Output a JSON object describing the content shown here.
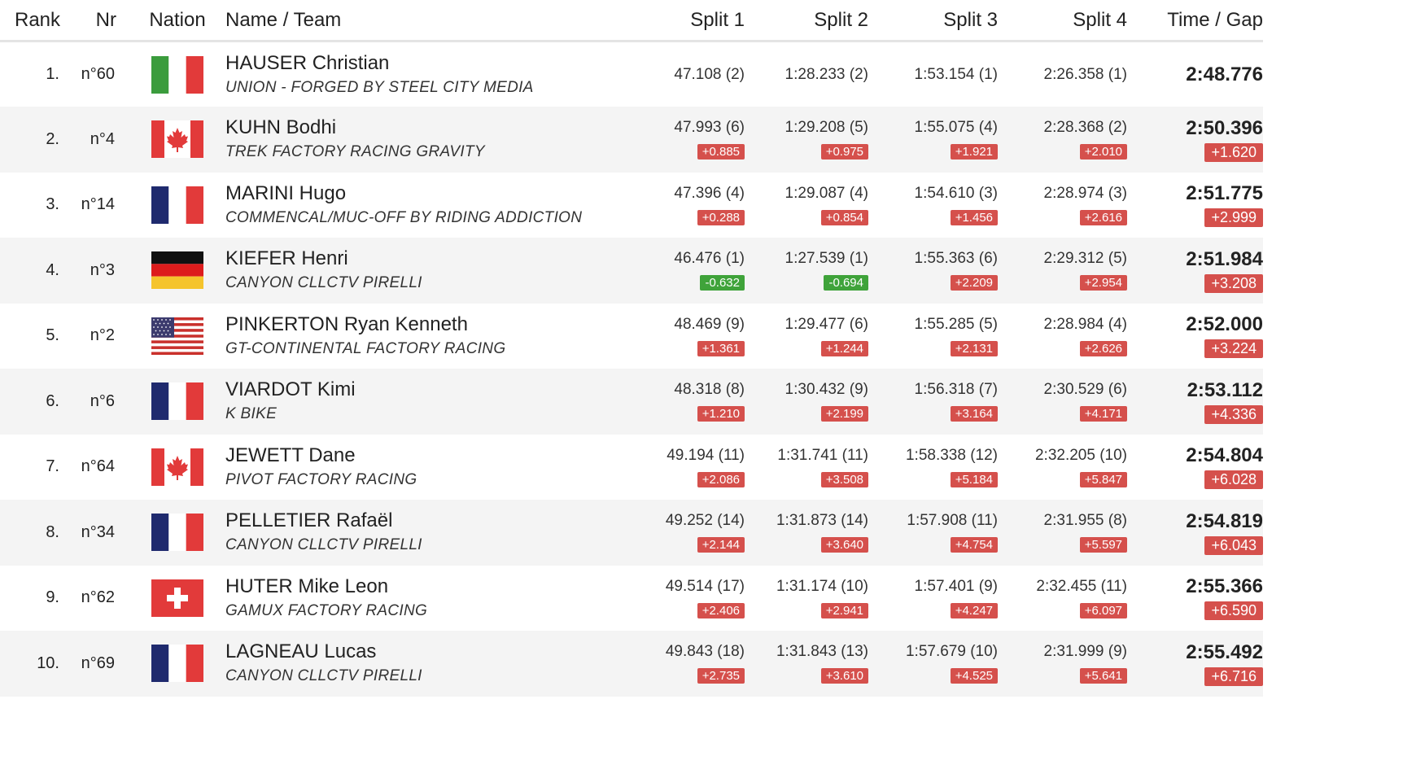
{
  "headers": {
    "rank": "Rank",
    "nr": "Nr",
    "nation": "Nation",
    "name_team": "Name / Team",
    "split1": "Split 1",
    "split2": "Split 2",
    "split3": "Split 3",
    "split4": "Split 4",
    "time_gap": "Time / Gap"
  },
  "colors": {
    "positive_badge": "#d5504c",
    "negative_badge": "#3fa33a",
    "row_alt": "#f4f4f4"
  },
  "rows": [
    {
      "rank": "1.",
      "nr": "n°60",
      "nation_flag": "italy-flag-icon",
      "name": "HAUSER Christian",
      "team": "UNION - FORGED BY STEEL CITY MEDIA",
      "splits": [
        {
          "value": "47.108 (2)",
          "diff": ""
        },
        {
          "value": "1:28.233 (2)",
          "diff": ""
        },
        {
          "value": "1:53.154 (1)",
          "diff": ""
        },
        {
          "value": "2:26.358 (1)",
          "diff": ""
        }
      ],
      "time": "2:48.776",
      "gap": ""
    },
    {
      "rank": "2.",
      "nr": "n°4",
      "nation_flag": "canada-flag-icon",
      "name": "KUHN Bodhi",
      "team": "TREK FACTORY RACING GRAVITY",
      "splits": [
        {
          "value": "47.993 (6)",
          "diff": "+0.885"
        },
        {
          "value": "1:29.208 (5)",
          "diff": "+0.975"
        },
        {
          "value": "1:55.075 (4)",
          "diff": "+1.921"
        },
        {
          "value": "2:28.368 (2)",
          "diff": "+2.010"
        }
      ],
      "time": "2:50.396",
      "gap": "+1.620"
    },
    {
      "rank": "3.",
      "nr": "n°14",
      "nation_flag": "france-flag-icon",
      "name": "MARINI Hugo",
      "team": "COMMENCAL/MUC-OFF BY RIDING ADDICTION",
      "splits": [
        {
          "value": "47.396 (4)",
          "diff": "+0.288"
        },
        {
          "value": "1:29.087 (4)",
          "diff": "+0.854"
        },
        {
          "value": "1:54.610 (3)",
          "diff": "+1.456"
        },
        {
          "value": "2:28.974 (3)",
          "diff": "+2.616"
        }
      ],
      "time": "2:51.775",
      "gap": "+2.999"
    },
    {
      "rank": "4.",
      "nr": "n°3",
      "nation_flag": "germany-flag-icon",
      "name": "KIEFER Henri",
      "team": "CANYON CLLCTV PIRELLI",
      "splits": [
        {
          "value": "46.476 (1)",
          "diff": "-0.632"
        },
        {
          "value": "1:27.539 (1)",
          "diff": "-0.694"
        },
        {
          "value": "1:55.363 (6)",
          "diff": "+2.209"
        },
        {
          "value": "2:29.312 (5)",
          "diff": "+2.954"
        }
      ],
      "time": "2:51.984",
      "gap": "+3.208"
    },
    {
      "rank": "5.",
      "nr": "n°2",
      "nation_flag": "usa-flag-icon",
      "name": "PINKERTON Ryan Kenneth",
      "team": "GT-CONTINENTAL FACTORY RACING",
      "splits": [
        {
          "value": "48.469 (9)",
          "diff": "+1.361"
        },
        {
          "value": "1:29.477 (6)",
          "diff": "+1.244"
        },
        {
          "value": "1:55.285 (5)",
          "diff": "+2.131"
        },
        {
          "value": "2:28.984 (4)",
          "diff": "+2.626"
        }
      ],
      "time": "2:52.000",
      "gap": "+3.224"
    },
    {
      "rank": "6.",
      "nr": "n°6",
      "nation_flag": "france-flag-icon",
      "name": "VIARDOT Kimi",
      "team": "K BIKE",
      "splits": [
        {
          "value": "48.318 (8)",
          "diff": "+1.210"
        },
        {
          "value": "1:30.432 (9)",
          "diff": "+2.199"
        },
        {
          "value": "1:56.318 (7)",
          "diff": "+3.164"
        },
        {
          "value": "2:30.529 (6)",
          "diff": "+4.171"
        }
      ],
      "time": "2:53.112",
      "gap": "+4.336"
    },
    {
      "rank": "7.",
      "nr": "n°64",
      "nation_flag": "canada-flag-icon",
      "name": "JEWETT Dane",
      "team": "PIVOT FACTORY RACING",
      "splits": [
        {
          "value": "49.194 (11)",
          "diff": "+2.086"
        },
        {
          "value": "1:31.741 (11)",
          "diff": "+3.508"
        },
        {
          "value": "1:58.338 (12)",
          "diff": "+5.184"
        },
        {
          "value": "2:32.205 (10)",
          "diff": "+5.847"
        }
      ],
      "time": "2:54.804",
      "gap": "+6.028"
    },
    {
      "rank": "8.",
      "nr": "n°34",
      "nation_flag": "france-flag-icon",
      "name": "PELLETIER Rafaël",
      "team": "CANYON CLLCTV PIRELLI",
      "splits": [
        {
          "value": "49.252 (14)",
          "diff": "+2.144"
        },
        {
          "value": "1:31.873 (14)",
          "diff": "+3.640"
        },
        {
          "value": "1:57.908 (11)",
          "diff": "+4.754"
        },
        {
          "value": "2:31.955 (8)",
          "diff": "+5.597"
        }
      ],
      "time": "2:54.819",
      "gap": "+6.043"
    },
    {
      "rank": "9.",
      "nr": "n°62",
      "nation_flag": "switzerland-flag-icon",
      "name": "HUTER Mike Leon",
      "team": "GAMUX FACTORY RACING",
      "splits": [
        {
          "value": "49.514 (17)",
          "diff": "+2.406"
        },
        {
          "value": "1:31.174 (10)",
          "diff": "+2.941"
        },
        {
          "value": "1:57.401 (9)",
          "diff": "+4.247"
        },
        {
          "value": "2:32.455 (11)",
          "diff": "+6.097"
        }
      ],
      "time": "2:55.366",
      "gap": "+6.590"
    },
    {
      "rank": "10.",
      "nr": "n°69",
      "nation_flag": "france-flag-icon",
      "name": "LAGNEAU Lucas",
      "team": "CANYON CLLCTV PIRELLI",
      "splits": [
        {
          "value": "49.843 (18)",
          "diff": "+2.735"
        },
        {
          "value": "1:31.843 (13)",
          "diff": "+3.610"
        },
        {
          "value": "1:57.679 (10)",
          "diff": "+4.525"
        },
        {
          "value": "2:31.999 (9)",
          "diff": "+5.641"
        }
      ],
      "time": "2:55.492",
      "gap": "+6.716"
    }
  ]
}
